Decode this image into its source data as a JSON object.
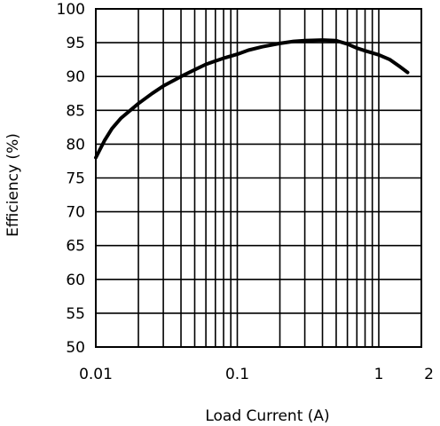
{
  "chart_data": {
    "type": "line",
    "xscale": "log",
    "xlabel": "Load Current (A)",
    "ylabel": "Efficiency (%)",
    "xlim": [
      0.01,
      2
    ],
    "ylim": [
      50,
      100
    ],
    "grid": true,
    "x_tick_values": [
      0.01,
      0.1,
      1,
      2
    ],
    "x_tick_labels": [
      "0.01",
      "0.1",
      "1",
      "2"
    ],
    "y_tick_values": [
      50,
      55,
      60,
      65,
      70,
      75,
      80,
      85,
      90,
      95,
      100
    ],
    "y_tick_labels": [
      "50",
      "55",
      "60",
      "65",
      "70",
      "75",
      "80",
      "85",
      "90",
      "95",
      "100"
    ],
    "series": [
      {
        "x": [
          0.01,
          0.0115,
          0.013,
          0.015,
          0.018,
          0.02,
          0.025,
          0.03,
          0.04,
          0.05,
          0.06,
          0.07,
          0.08,
          0.1,
          0.12,
          0.15,
          0.2,
          0.25,
          0.3,
          0.4,
          0.5,
          0.6,
          0.7,
          0.8,
          1.0,
          1.2,
          1.4,
          1.6
        ],
        "y": [
          78.0,
          80.5,
          82.3,
          83.8,
          85.2,
          86.0,
          87.5,
          88.6,
          90.0,
          91.0,
          91.8,
          92.3,
          92.7,
          93.3,
          93.9,
          94.4,
          94.9,
          95.2,
          95.3,
          95.4,
          95.3,
          94.8,
          94.2,
          93.8,
          93.2,
          92.5,
          91.5,
          90.6
        ]
      }
    ]
  }
}
